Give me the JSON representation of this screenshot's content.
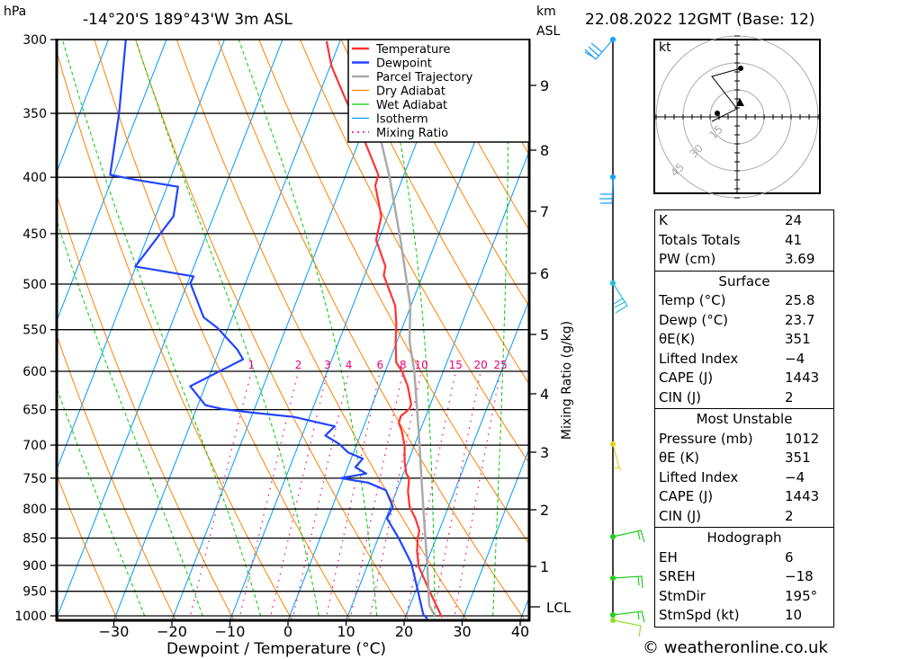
{
  "header": {
    "pressure_unit": "hPa",
    "location": "-14°20'S 189°43'W 3m ASL",
    "km_label": "km",
    "asl_label": "ASL",
    "datetime": "22.08.2022 12GMT (Base: 12)"
  },
  "side_axis": {
    "km_ticks": [
      "9",
      "8",
      "7",
      "6",
      "5",
      "4",
      "3",
      "2",
      "1"
    ],
    "lcl_label": "LCL",
    "mixing_ratio_title": "Mixing Ratio (g/kg)"
  },
  "hodograph": {
    "unit": "kt",
    "rings": [
      "15",
      "30",
      "45"
    ]
  },
  "indices": {
    "general": [
      {
        "label": "K",
        "value": "24"
      },
      {
        "label": "Totals Totals",
        "value": "41"
      },
      {
        "label": "PW (cm)",
        "value": "3.69"
      }
    ],
    "surface": {
      "title": "Surface",
      "rows": [
        {
          "label": "Temp (°C)",
          "value": "25.8"
        },
        {
          "label": "Dewp (°C)",
          "value": "23.7"
        },
        {
          "label": "θE(K)",
          "value": "351"
        },
        {
          "label": "Lifted Index",
          "value": "−4"
        },
        {
          "label": "CAPE (J)",
          "value": "1443"
        },
        {
          "label": "CIN (J)",
          "value": "2"
        }
      ]
    },
    "most_unstable": {
      "title": "Most Unstable",
      "rows": [
        {
          "label": "Pressure (mb)",
          "value": "1012"
        },
        {
          "label": "θE (K)",
          "value": "351"
        },
        {
          "label": "Lifted Index",
          "value": "−4"
        },
        {
          "label": "CAPE (J)",
          "value": "1443"
        },
        {
          "label": "CIN (J)",
          "value": "2"
        }
      ]
    },
    "hodograph": {
      "title": "Hodograph",
      "rows": [
        {
          "label": "EH",
          "value": "6"
        },
        {
          "label": "SREH",
          "value": "−18"
        },
        {
          "label": "StmDir",
          "value": "195°"
        },
        {
          "label": "StmSpd (kt)",
          "value": "10"
        }
      ]
    }
  },
  "footer": {
    "copyright": "© weatheronline.co.uk"
  },
  "colors": {
    "temperature": "#ff3333",
    "dewpoint": "#2244ff",
    "parcel": "#aaaaaa",
    "dry_adiabat": "#ff8000",
    "wet_adiabat": "#00cc00",
    "isotherm": "#0099ff",
    "mixing_ratio": "#ee0077"
  },
  "chart_data": {
    "type": "line",
    "subtype": "skew-t log-p",
    "xlabel": "Dewpoint / Temperature (°C)",
    "ylabel": "hPa",
    "x_ticks": [
      -30,
      -20,
      -10,
      0,
      10,
      20,
      30,
      40
    ],
    "y_ticks": [
      300,
      350,
      400,
      450,
      500,
      550,
      600,
      650,
      700,
      750,
      800,
      850,
      900,
      950,
      1000
    ],
    "xlim": [
      -40,
      40
    ],
    "ylim": [
      1010,
      300
    ],
    "legend": {
      "placement": "top-right",
      "entries": [
        "Temperature",
        "Dewpoint",
        "Parcel Trajectory",
        "Dry Adiabat",
        "Wet Adiabat",
        "Isotherm",
        "Mixing Ratio"
      ]
    },
    "mixing_ratio_labels": [
      1,
      2,
      3,
      4,
      6,
      8,
      10,
      15,
      20,
      25
    ],
    "dry_adiabats_1000hPa_C": [
      -40,
      -30,
      -20,
      -10,
      0,
      10,
      20,
      30,
      40,
      50,
      60,
      70,
      80,
      90,
      100,
      110,
      120,
      130,
      140,
      150,
      160,
      170,
      180,
      190,
      200
    ],
    "wet_adiabats_1000hPa_C": [
      -25,
      -15,
      -5,
      5,
      15,
      25,
      35
    ],
    "series": [
      {
        "name": "Temperature",
        "p": [
          1003,
          948,
          902,
          874,
          850,
          837,
          816,
          796,
          771,
          750,
          743,
          724,
          702,
          680,
          668,
          659,
          649,
          643,
          619,
          600,
          589,
          564,
          543,
          523,
          491,
          482,
          456,
          434,
          407,
          398,
          361,
          341,
          317,
          301
        ],
        "t": [
          26.3,
          22.3,
          18.9,
          17.6,
          16.8,
          16.6,
          15.1,
          13.3,
          12.0,
          11.3,
          10.5,
          9.4,
          8.4,
          6.9,
          5.8,
          5.7,
          6.7,
          6.7,
          4.9,
          2.9,
          1.3,
          -0.2,
          -1.3,
          -2.7,
          -6.7,
          -7.0,
          -10.4,
          -11.1,
          -14.2,
          -14.4,
          -20.8,
          -24.9,
          -29.8,
          -32.3
        ]
      },
      {
        "name": "Dewpoint",
        "p": [
          1006,
          997,
          942,
          896,
          852,
          816,
          796,
          769,
          757,
          750,
          743,
          733,
          720,
          711,
          698,
          686,
          673,
          660,
          654,
          649,
          644,
          619,
          585,
          573,
          548,
          536,
          499,
          492,
          482,
          434,
          408,
          402,
          398,
          350,
          300
        ],
        "t": [
          23.9,
          22.9,
          20.0,
          17.4,
          13.7,
          10.2,
          10.4,
          8.1,
          4.5,
          -0.5,
          3.6,
          1.3,
          2.0,
          -0.9,
          -3.1,
          -6.0,
          -5.0,
          -12.6,
          -20.2,
          -25.6,
          -28.7,
          -32.6,
          -25.3,
          -27.0,
          -31.8,
          -34.9,
          -39.5,
          -39.4,
          -50.1,
          -46.9,
          -48.1,
          -56.0,
          -60.6,
          -63.2,
          -67.0
        ]
      },
      {
        "name": "Parcel Trajectory",
        "p": [
          1000,
          978,
          902,
          795,
          680,
          600,
          564,
          523,
          456,
          400,
          361
        ],
        "t": [
          25.0,
          23.3,
          20.4,
          15.6,
          9.8,
          5.0,
          2.2,
          -0.1,
          -6.2,
          -12.3,
          -17.6
        ]
      }
    ]
  }
}
